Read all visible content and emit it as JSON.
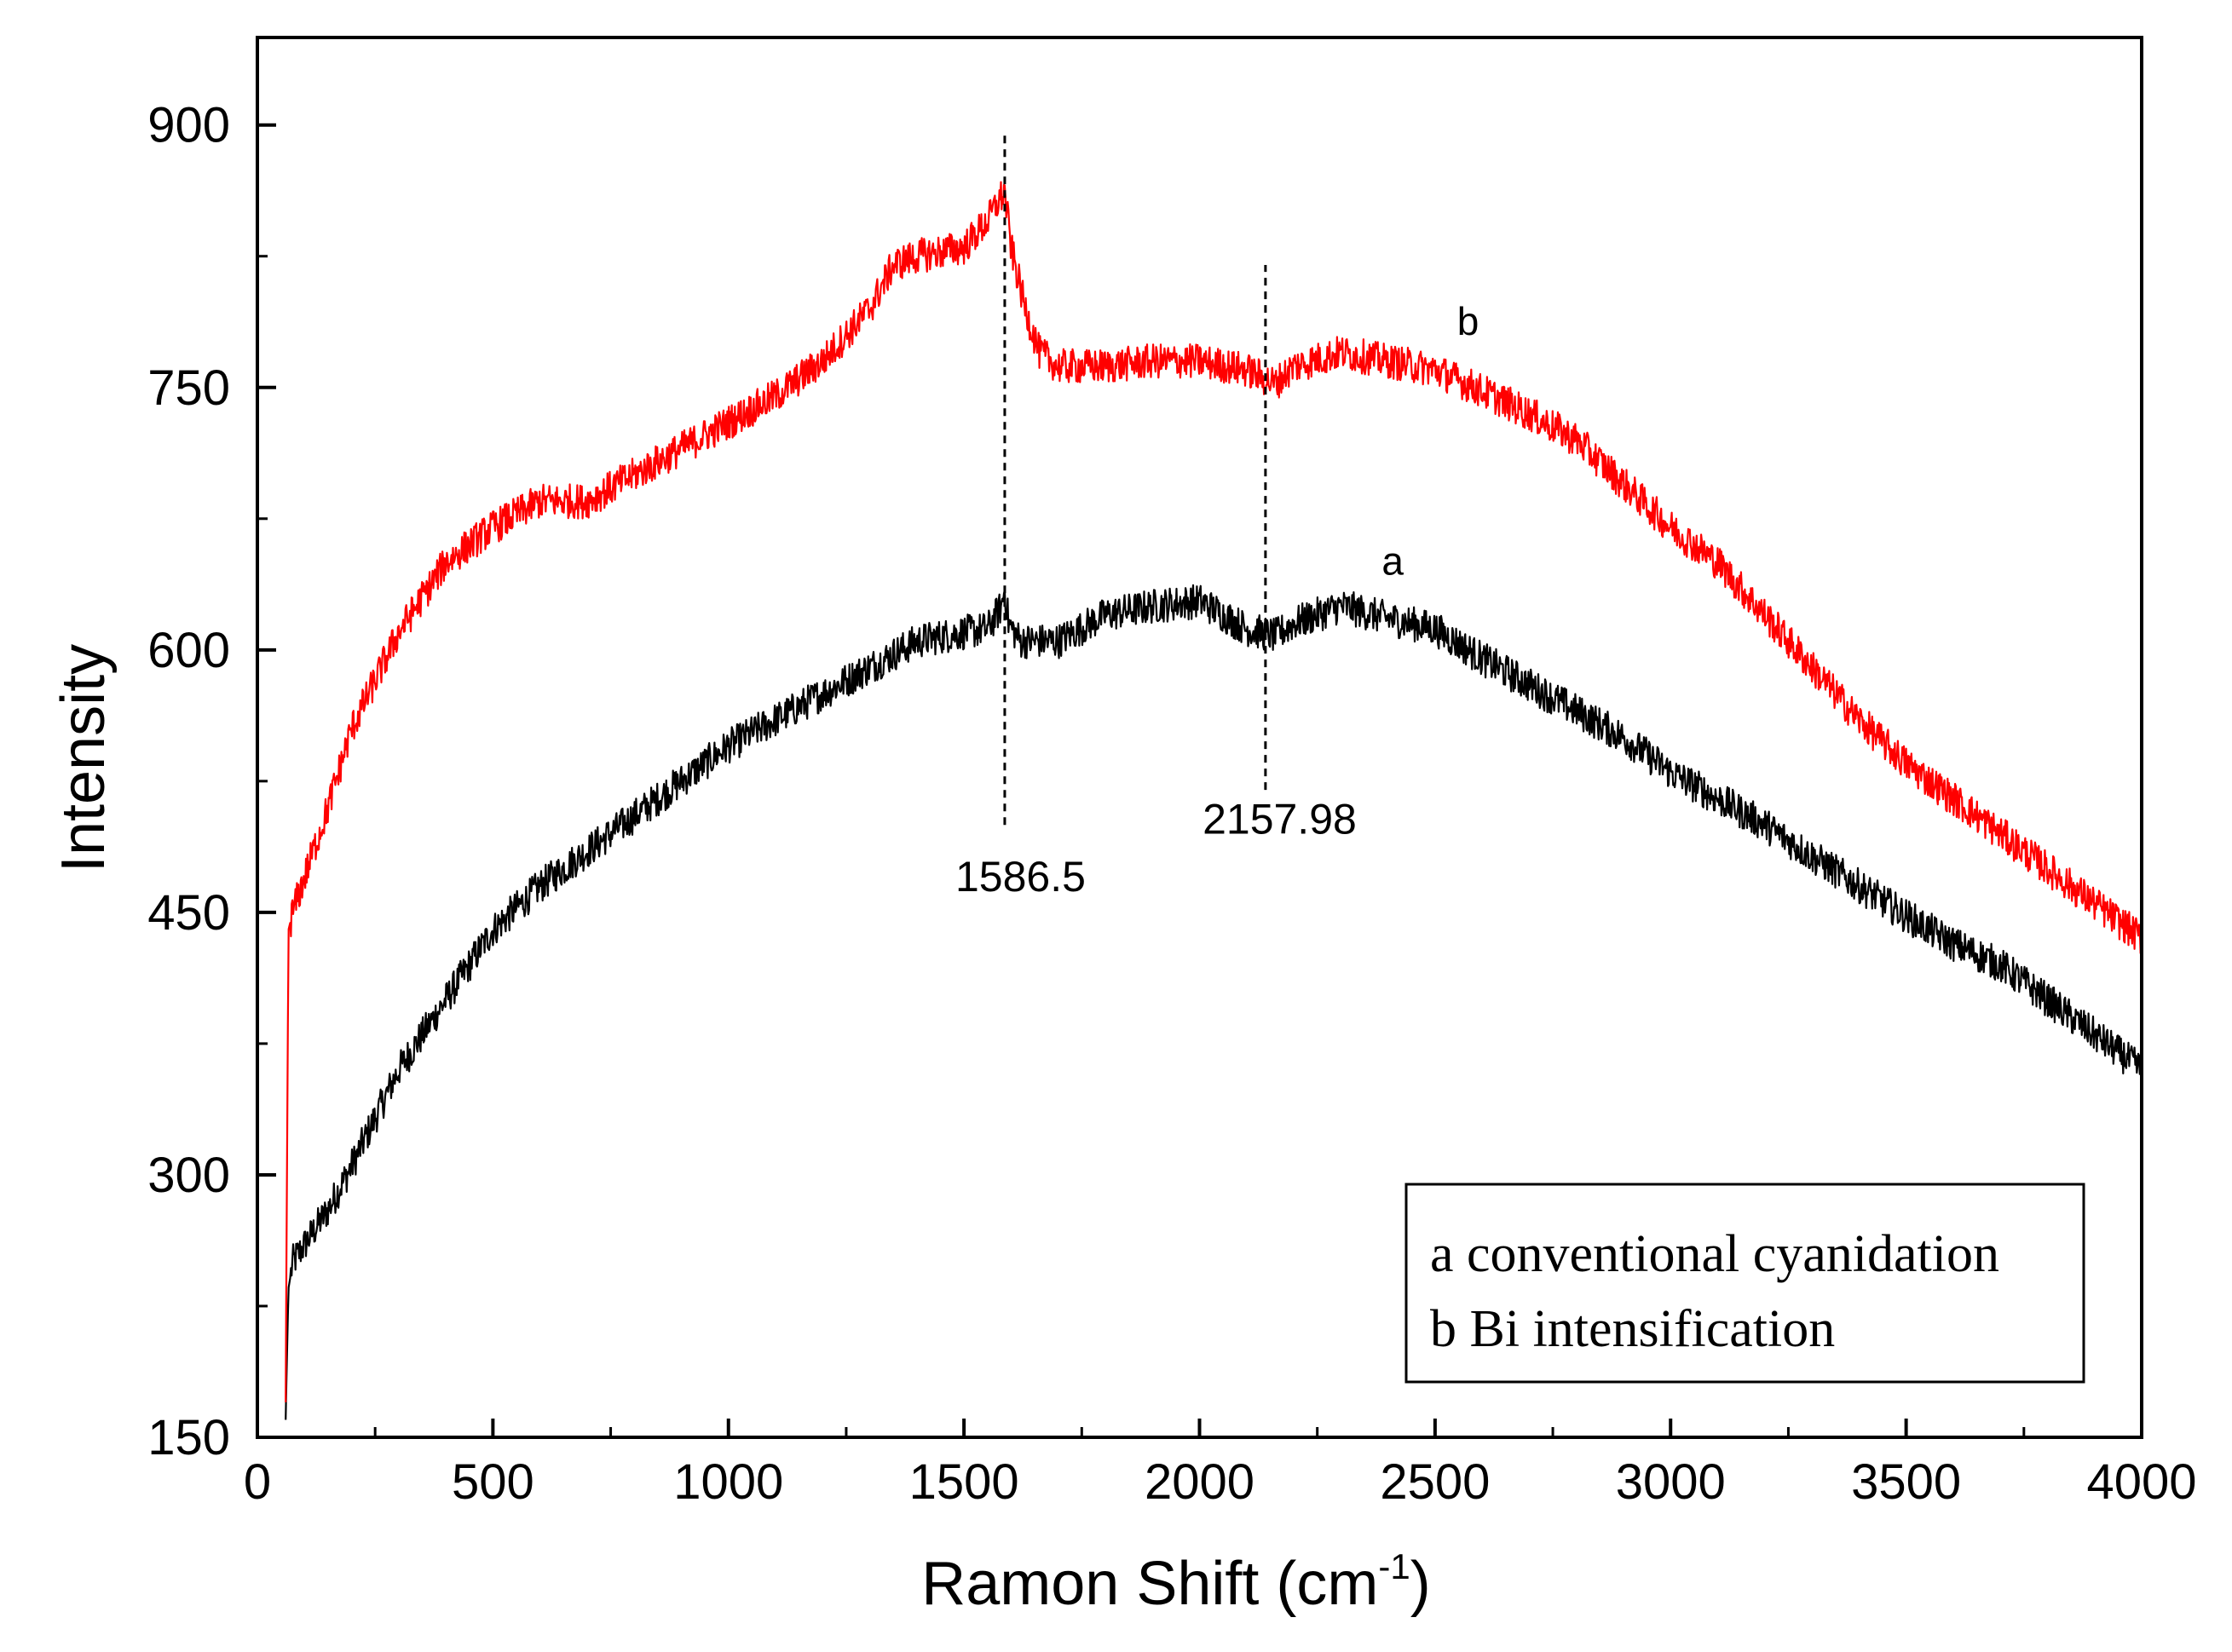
{
  "chart_data": {
    "type": "line",
    "title": "",
    "xlabel": "Ramon Shift (cm",
    "xlabel_sup": "-1",
    "xlabel_close": ")",
    "ylabel": "Intensity",
    "xlim": [
      0,
      4000
    ],
    "ylim": [
      150,
      950
    ],
    "x_ticks": [
      0,
      500,
      1000,
      1500,
      2000,
      2500,
      3000,
      3500,
      4000
    ],
    "x_minor_ticks": [
      250,
      750,
      1250,
      1750,
      2250,
      2750,
      3250,
      3750
    ],
    "y_ticks": [
      150,
      300,
      450,
      600,
      750,
      900
    ],
    "y_minor_ticks": [
      225,
      375,
      525,
      675,
      825
    ],
    "grid": false,
    "noise_amplitude": 10,
    "series": [
      {
        "id": "a",
        "name": "a conventional cyanidation",
        "tag": "a",
        "color": "#000000",
        "x": [
          60,
          66,
          75,
          100,
          150,
          200,
          300,
          400,
          500,
          600,
          700,
          800,
          900,
          1000,
          1100,
          1200,
          1300,
          1400,
          1500,
          1550,
          1580,
          1586,
          1595,
          1620,
          1700,
          1800,
          1900,
          2000,
          2100,
          2160,
          2200,
          2300,
          2400,
          2500,
          2600,
          2700,
          2800,
          2900,
          3000,
          3100,
          3200,
          3300,
          3400,
          3500,
          3600,
          3700,
          3800,
          3900,
          4000
        ],
        "y": [
          160,
          235,
          250,
          260,
          280,
          305,
          360,
          400,
          440,
          465,
          485,
          505,
          525,
          545,
          560,
          575,
          590,
          605,
          610,
          612,
          625,
          635,
          615,
          605,
          605,
          620,
          625,
          628,
          612,
          608,
          615,
          625,
          618,
          612,
          595,
          580,
          565,
          550,
          530,
          515,
          500,
          482,
          465,
          448,
          432,
          420,
          400,
          380,
          360
        ]
      },
      {
        "id": "b",
        "name": "b Bi intensification",
        "tag": "b",
        "color": "#ff0000",
        "x": [
          60,
          66,
          75,
          100,
          150,
          200,
          300,
          400,
          500,
          600,
          700,
          800,
          900,
          1000,
          1100,
          1200,
          1300,
          1350,
          1400,
          1500,
          1550,
          1570,
          1586,
          1600,
          1630,
          1660,
          1700,
          1800,
          1900,
          2000,
          2100,
          2160,
          2200,
          2300,
          2400,
          2500,
          2600,
          2700,
          2800,
          2900,
          3000,
          3100,
          3200,
          3300,
          3400,
          3500,
          3600,
          3700,
          3800,
          3900,
          4000
        ],
        "y": [
          170,
          440,
          450,
          470,
          510,
          555,
          610,
          650,
          670,
          685,
          685,
          700,
          715,
          730,
          745,
          765,
          795,
          820,
          825,
          830,
          845,
          855,
          862,
          830,
          795,
          770,
          762,
          762,
          765,
          765,
          760,
          752,
          762,
          770,
          765,
          760,
          748,
          735,
          720,
          695,
          670,
          650,
          620,
          590,
          560,
          535,
          515,
          495,
          475,
          455,
          435
        ]
      }
    ],
    "annotations": [
      {
        "text": "1586.5",
        "x": 1586.5,
        "line_y": [
          500,
          895
        ],
        "label_x": 1620,
        "label_y": 462
      },
      {
        "text": "2157.98",
        "x": 2140,
        "line_y": [
          520,
          820
        ],
        "label_x": 2170,
        "label_y": 495
      }
    ],
    "series_tags": [
      {
        "text": "b",
        "x": 2570,
        "y": 780
      },
      {
        "text": "a",
        "x": 2410,
        "y": 643
      }
    ],
    "legend": {
      "placement": "bottom-right",
      "items": [
        "a conventional cyanidation",
        "b Bi intensification"
      ]
    }
  }
}
